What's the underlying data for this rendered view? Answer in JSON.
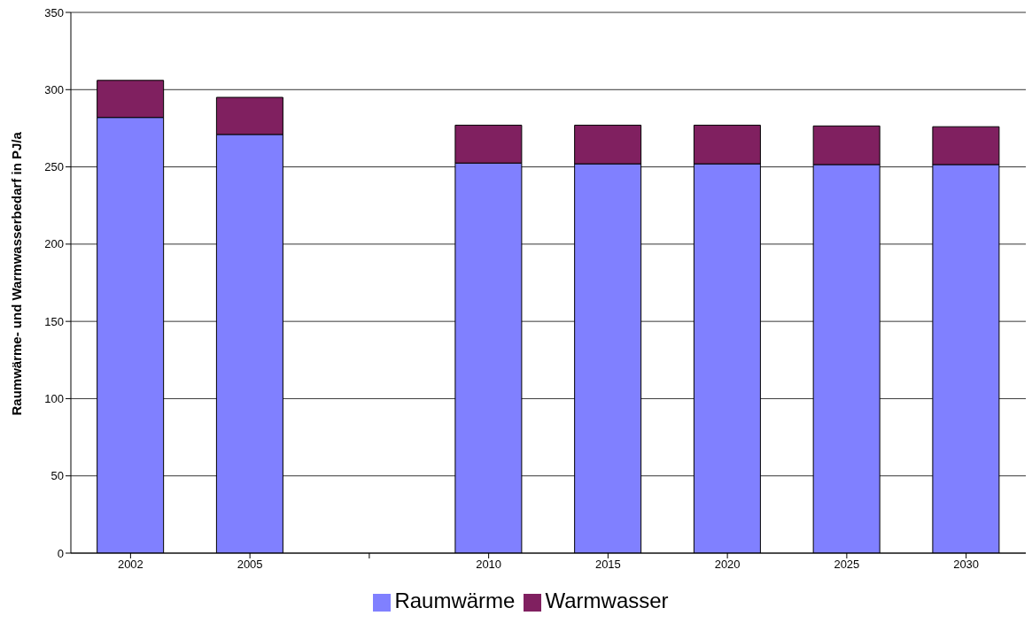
{
  "chart_data": {
    "type": "bar",
    "stacked": true,
    "ylabel": "Raumwärme- und Warmwasserbedarf in PJ/a",
    "categories": [
      "2002",
      "2005",
      null,
      "2010",
      "2015",
      "2020",
      "2025",
      "2030"
    ],
    "series": [
      {
        "name": "Raumwärme",
        "color": "#8080ff",
        "values": [
          282,
          271,
          null,
          252.5,
          252,
          252,
          251.5,
          251.5
        ]
      },
      {
        "name": "Warmwasser",
        "color": "#802060",
        "values": [
          24,
          24,
          null,
          24.5,
          25,
          25,
          25,
          24.5
        ]
      }
    ],
    "ylim": [
      0,
      350
    ],
    "yticks": [
      0,
      50,
      100,
      150,
      200,
      250,
      300,
      350
    ],
    "grid": "y",
    "legend": "bottom"
  }
}
